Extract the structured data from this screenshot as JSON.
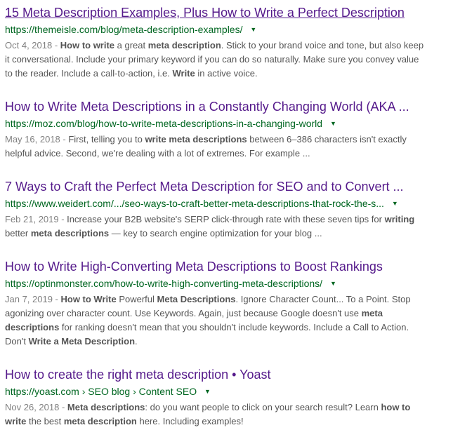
{
  "colors": {
    "title_blue": "#1a0dab",
    "title_visited": "#551a8b",
    "url_green": "#006621",
    "snippet_gray": "#545454",
    "date_gray": "#808080",
    "page_background": "#ffffff"
  },
  "icons": {
    "dropdown_arrow": "▼"
  },
  "results": [
    {
      "title": "15 Meta Description Examples, Plus How to Write a Perfect Description",
      "visited": true,
      "underlined": true,
      "url": "https://themeisle.com/blog/meta-description-examples/",
      "date": "Oct 4, 2018 - ",
      "snippet": [
        {
          "text": "How to write",
          "bold": true
        },
        {
          "text": " a great ",
          "bold": false
        },
        {
          "text": "meta description",
          "bold": true
        },
        {
          "text": ". Stick to your brand voice and tone, but also keep it conversational. Include your primary keyword if you can do so naturally. Make sure you convey value to the reader. Include a call-to-action, i.e. ",
          "bold": false
        },
        {
          "text": "Write",
          "bold": true
        },
        {
          "text": " in active voice.",
          "bold": false
        }
      ]
    },
    {
      "title": "How to Write Meta Descriptions in a Constantly Changing World (AKA ...",
      "visited": true,
      "underlined": false,
      "url": "https://moz.com/blog/how-to-write-meta-descriptions-in-a-changing-world",
      "date": "May 16, 2018 - ",
      "snippet": [
        {
          "text": "First, telling you to ",
          "bold": false
        },
        {
          "text": "write meta descriptions",
          "bold": true
        },
        {
          "text": " between 6–386 characters isn't exactly helpful advice. Second, we're dealing with a lot of extremes. For example ...",
          "bold": false
        }
      ]
    },
    {
      "title": "7 Ways to Craft the Perfect Meta Description for SEO and to Convert ...",
      "visited": true,
      "underlined": false,
      "url": "https://www.weidert.com/.../seo-ways-to-craft-better-meta-descriptions-that-rock-the-s...",
      "date": "Feb 21, 2019 - ",
      "snippet": [
        {
          "text": "Increase your B2B website's SERP click-through rate with these seven tips for ",
          "bold": false
        },
        {
          "text": "writing",
          "bold": true
        },
        {
          "text": " better ",
          "bold": false
        },
        {
          "text": "meta descriptions",
          "bold": true
        },
        {
          "text": " — key to search engine optimization for your blog ...",
          "bold": false
        }
      ]
    },
    {
      "title": "How to Write High-Converting Meta Descriptions to Boost Rankings",
      "visited": true,
      "underlined": false,
      "url": "https://optinmonster.com/how-to-write-high-converting-meta-descriptions/",
      "date": "Jan 7, 2019 - ",
      "snippet": [
        {
          "text": "How to Write",
          "bold": true
        },
        {
          "text": " Powerful ",
          "bold": false
        },
        {
          "text": "Meta Descriptions",
          "bold": true
        },
        {
          "text": ". Ignore Character Count... To a Point. Stop agonizing over character count. Use Keywords. Again, just because Google doesn't use ",
          "bold": false
        },
        {
          "text": "meta descriptions",
          "bold": true
        },
        {
          "text": " for ranking doesn't mean that you shouldn't include keywords. Include a Call to Action. Don't ",
          "bold": false
        },
        {
          "text": "Write a Meta Description",
          "bold": true
        },
        {
          "text": ".",
          "bold": false
        }
      ]
    },
    {
      "title": "How to create the right meta description • Yoast",
      "visited": true,
      "underlined": false,
      "url": "https://yoast.com › SEO blog › Content SEO",
      "date": "Nov 26, 2018 - ",
      "snippet": [
        {
          "text": "Meta descriptions",
          "bold": true
        },
        {
          "text": ": do you want people to click on your search result? Learn ",
          "bold": false
        },
        {
          "text": "how to write",
          "bold": true
        },
        {
          "text": " the best ",
          "bold": false
        },
        {
          "text": "meta description",
          "bold": true
        },
        {
          "text": " here. Including examples!",
          "bold": false
        }
      ]
    }
  ]
}
